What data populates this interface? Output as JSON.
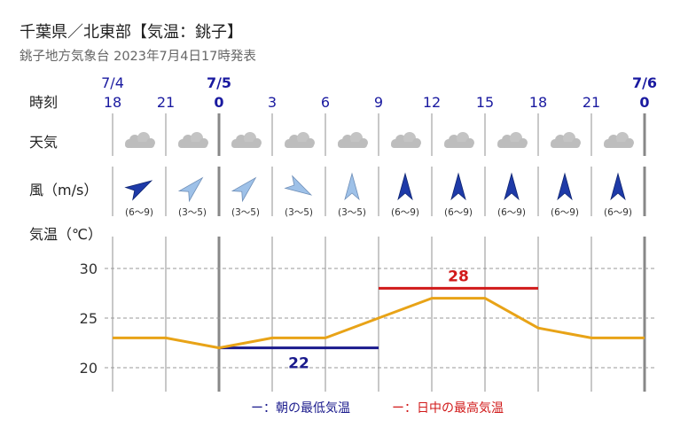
{
  "header": {
    "title": "千葉県／北東部【気温：銚子】",
    "subtitle": "銚子地方気象台 2023年7月4日17時発表"
  },
  "rows": {
    "time": "時刻",
    "weather": "天気",
    "wind": "風（m/s）",
    "temperature": "気温（℃）"
  },
  "dates": [
    {
      "label": "7/4",
      "index": 0,
      "bold": false
    },
    {
      "label": "7/5",
      "index": 2,
      "bold": true
    },
    {
      "label": "7/6",
      "index": 10,
      "bold": true
    }
  ],
  "hours": [
    "18",
    "21",
    "0",
    "3",
    "6",
    "9",
    "12",
    "15",
    "18",
    "21",
    "0"
  ],
  "weather_icon": "cloud-icon",
  "wind": {
    "direction_deg": [
      240,
      225,
      225,
      300,
      180,
      180,
      180,
      180,
      180,
      180
    ],
    "strong": [
      true,
      false,
      false,
      false,
      false,
      true,
      true,
      true,
      true,
      true
    ],
    "speed": [
      "(6～9)",
      "(3～5)",
      "(3～5)",
      "(3～5)",
      "(3～5)",
      "(6～9)",
      "(6～9)",
      "(6～9)",
      "(6～9)",
      "(6～9)"
    ]
  },
  "chart_data": {
    "type": "line",
    "x": [
      "18",
      "21",
      "0",
      "3",
      "6",
      "9",
      "12",
      "15",
      "18",
      "21",
      "0"
    ],
    "series": [
      {
        "values": [
          23,
          23,
          22,
          23,
          23,
          25,
          27,
          27,
          24,
          23,
          23
        ]
      }
    ],
    "yticks": [
      20,
      25,
      30
    ],
    "ylim": [
      18,
      32
    ],
    "grid": true,
    "min_temp": {
      "value": 22,
      "label": "22",
      "from_index": 2,
      "to_index": 5
    },
    "max_temp": {
      "value": 28,
      "label": "28",
      "from_index": 5,
      "to_index": 8
    }
  },
  "colors": {
    "line": "#e8a317",
    "min": "#1a1a8c",
    "max": "#d11a1a",
    "date": "#1a1aa0",
    "grid": "#999999",
    "wind_strong": "#1e3aa8",
    "wind_weak": "#9ec1e8"
  },
  "legend": {
    "min": "ー：朝の最低気温",
    "max": "ー：日中の最高気温"
  }
}
